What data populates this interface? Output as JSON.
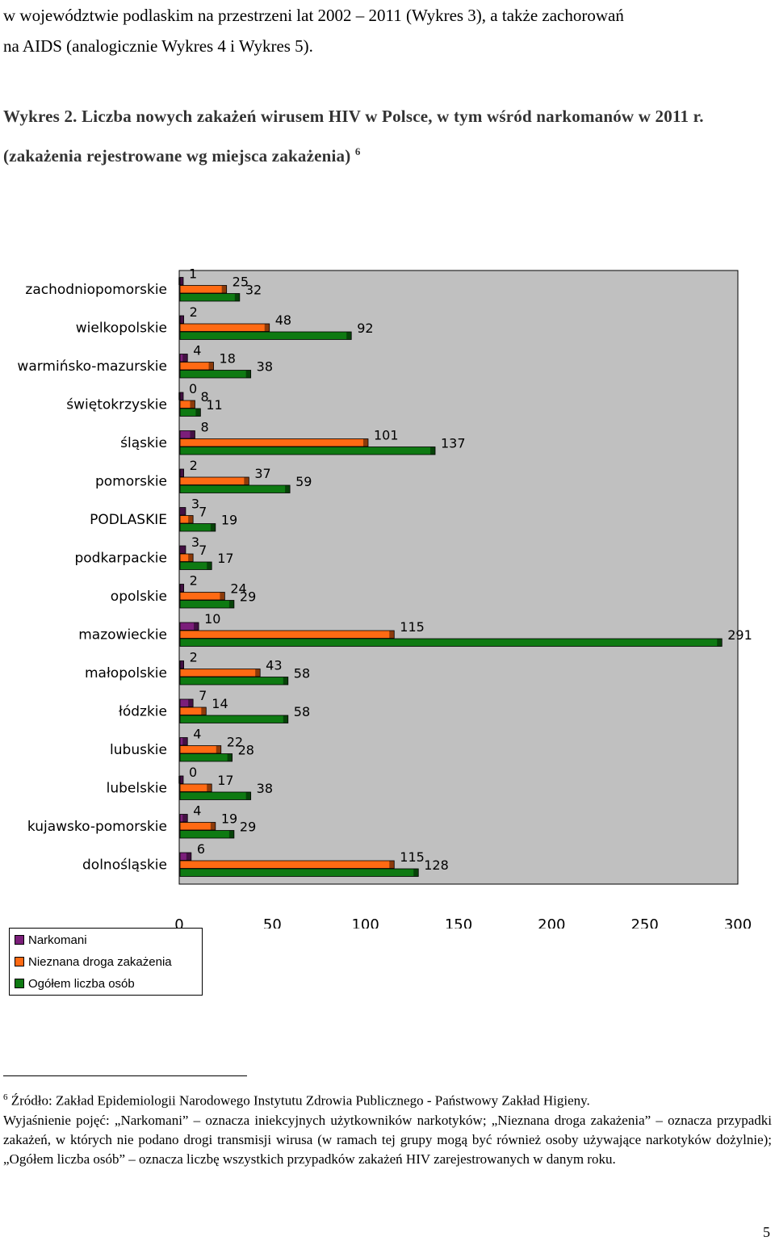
{
  "intro": {
    "line1": "w województwie podlaskim na przestrzeni lat 2002 – 2011 (Wykres 3), a także zachorowań",
    "line2": "na AIDS (analogicznie Wykres 4 i Wykres 5)."
  },
  "caption": {
    "text": "Wykres 2. Liczba nowych zakażeń wirusem HIV w Polsce, w tym wśród narkomanów w 2011 r. (zakażenia rejestrowane wg miejsca zakażenia)",
    "footnote_mark": "6"
  },
  "chart_data": {
    "type": "bar",
    "orientation": "horizontal",
    "categories": [
      "zachodniopomorskie",
      "wielkopolskie",
      "warmińsko-mazurskie",
      "świętokrzyskie",
      "śląskie",
      "pomorskie",
      "PODLASKIE",
      "podkarpackie",
      "opolskie",
      "mazowieckie",
      "małopolskie",
      "łódzkie",
      "lubuskie",
      "lubelskie",
      "kujawsko-pomorskie",
      "dolnośląskie"
    ],
    "series": [
      {
        "name": "Narkomani",
        "color": "#7B1E7A",
        "values": [
          1,
          2,
          4,
          0,
          8,
          2,
          3,
          3,
          2,
          10,
          2,
          7,
          4,
          0,
          4,
          6
        ]
      },
      {
        "name": "Nieznana droga zakażenia",
        "color": "#FF6A13",
        "values": [
          25,
          48,
          18,
          8,
          101,
          37,
          7,
          7,
          24,
          115,
          43,
          14,
          22,
          17,
          19,
          115
        ]
      },
      {
        "name": "Ogółem liczba osób",
        "color": "#0E7A12",
        "values": [
          32,
          92,
          38,
          11,
          137,
          59,
          19,
          17,
          29,
          291,
          58,
          58,
          28,
          38,
          29,
          128
        ]
      }
    ],
    "xlim": [
      0,
      300
    ],
    "xticks": [
      0,
      50,
      100,
      150,
      200,
      250,
      300
    ],
    "grid": false,
    "legend_position": "bottom-left",
    "plot_background": "#C0C0C0"
  },
  "footnote": {
    "mark": "6",
    "source": "Źródło: Zakład Epidemiologii Narodowego Instytutu Zdrowia Publicznego - Państwowy Zakład Higieny.",
    "explanation": "Wyjaśnienie pojęć: „Narkomani” – oznacza iniekcyjnych użytkowników narkotyków; „Nieznana droga zakażenia” – oznacza przypadki zakażeń, w których nie podano drogi transmisji wirusa (w ramach tej grupy mogą być również osoby używające narkotyków dożylnie); „Ogółem liczba osób” – oznacza liczbę wszystkich przypadków zakażeń HIV zarejestrowanych w danym roku."
  },
  "page_number": "5"
}
